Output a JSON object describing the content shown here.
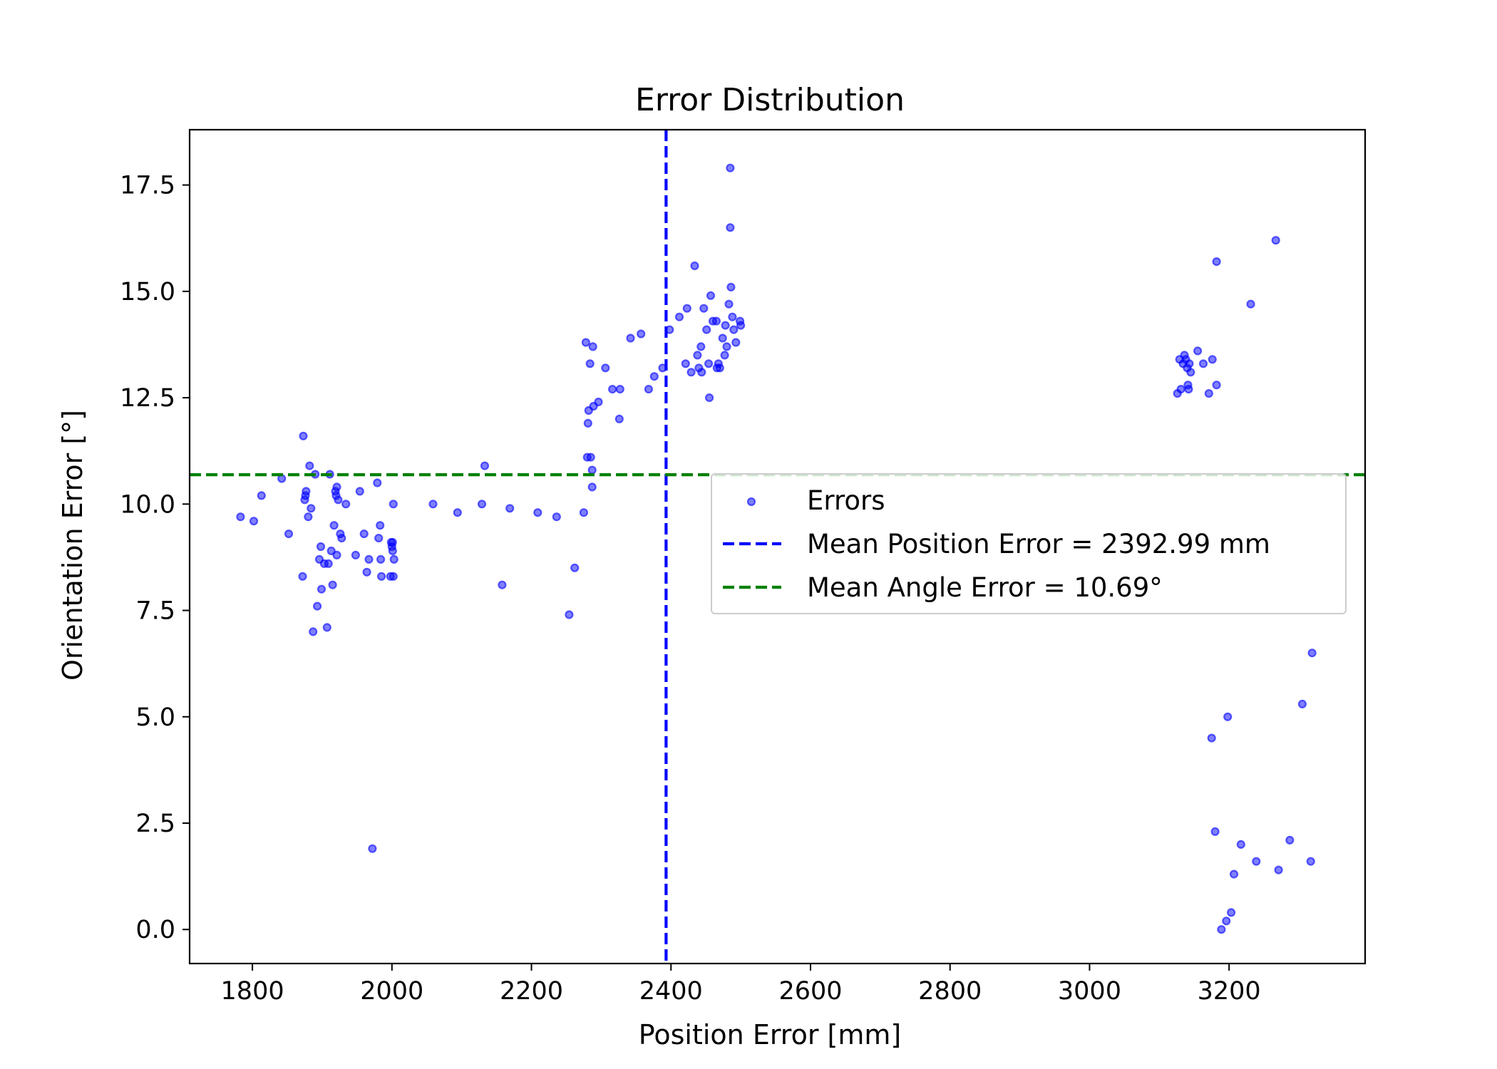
{
  "chart_data": {
    "type": "scatter",
    "title": "Error Distribution",
    "xlabel": "Position Error [mm]",
    "ylabel": "Orientation Error [°]",
    "xlim": [
      1710,
      3395
    ],
    "ylim": [
      -0.8,
      18.8
    ],
    "x_ticks": [
      1800,
      2000,
      2200,
      2400,
      2600,
      2800,
      3000,
      3200
    ],
    "y_ticks": [
      0.0,
      2.5,
      5.0,
      7.5,
      10.0,
      12.5,
      15.0,
      17.5
    ],
    "grid": false,
    "legend_position": "center-right",
    "series": [
      {
        "name": "Errors",
        "kind": "scatter",
        "color": "#0000ff",
        "points": [
          [
            1783,
            9.7
          ],
          [
            1802,
            9.6
          ],
          [
            1813,
            10.2
          ],
          [
            1842,
            10.6
          ],
          [
            1852,
            9.3
          ],
          [
            1873,
            11.6
          ],
          [
            1872,
            8.3
          ],
          [
            1875,
            10.1
          ],
          [
            1876,
            10.2
          ],
          [
            1877,
            10.3
          ],
          [
            1880,
            9.7
          ],
          [
            1882,
            10.9
          ],
          [
            1884,
            9.9
          ],
          [
            1887,
            7.0
          ],
          [
            1890,
            10.7
          ],
          [
            1893,
            7.6
          ],
          [
            1896,
            8.7
          ],
          [
            1898,
            9.0
          ],
          [
            1899,
            8.0
          ],
          [
            1903,
            8.6
          ],
          [
            1907,
            7.1
          ],
          [
            1909,
            8.6
          ],
          [
            1911,
            10.7
          ],
          [
            1913,
            8.9
          ],
          [
            1915,
            8.1
          ],
          [
            1917,
            9.5
          ],
          [
            1919,
            10.3
          ],
          [
            1920,
            10.2
          ],
          [
            1921,
            10.4
          ],
          [
            1921,
            8.8
          ],
          [
            1923,
            10.1
          ],
          [
            1926,
            9.3
          ],
          [
            1928,
            9.2
          ],
          [
            1934,
            10.0
          ],
          [
            1948,
            8.8
          ],
          [
            1954,
            10.3
          ],
          [
            1960,
            9.3
          ],
          [
            1964,
            8.4
          ],
          [
            1967,
            8.7
          ],
          [
            1972,
            1.9
          ],
          [
            1979,
            10.5
          ],
          [
            1981,
            9.2
          ],
          [
            1983,
            9.5
          ],
          [
            1984,
            8.7
          ],
          [
            1985,
            8.3
          ],
          [
            1998,
            8.3
          ],
          [
            1999,
            9.1
          ],
          [
            2000,
            9.0
          ],
          [
            2001,
            8.9
          ],
          [
            2001,
            9.1
          ],
          [
            2002,
            8.3
          ],
          [
            2002,
            10.0
          ],
          [
            2003,
            8.7
          ],
          [
            2059,
            10.0
          ],
          [
            2094,
            9.8
          ],
          [
            2129,
            10.0
          ],
          [
            2133,
            10.9
          ],
          [
            2158,
            8.1
          ],
          [
            2169,
            9.9
          ],
          [
            2209,
            9.8
          ],
          [
            2236,
            9.7
          ],
          [
            2254,
            7.4
          ],
          [
            2262,
            8.5
          ],
          [
            2275,
            9.8
          ],
          [
            2278,
            13.8
          ],
          [
            2280,
            11.1
          ],
          [
            2281,
            11.9
          ],
          [
            2282,
            12.2
          ],
          [
            2284,
            13.3
          ],
          [
            2285,
            11.1
          ],
          [
            2287,
            10.8
          ],
          [
            2287,
            10.4
          ],
          [
            2288,
            13.7
          ],
          [
            2289,
            12.3
          ],
          [
            2296,
            12.4
          ],
          [
            2306,
            13.2
          ],
          [
            2316,
            12.7
          ],
          [
            2326,
            12.0
          ],
          [
            2327,
            12.7
          ],
          [
            2342,
            13.9
          ],
          [
            2357,
            14.0
          ],
          [
            2368,
            12.7
          ],
          [
            2376,
            13.0
          ],
          [
            2388,
            13.2
          ],
          [
            2398,
            14.1
          ],
          [
            2412,
            14.4
          ],
          [
            2421,
            13.3
          ],
          [
            2423,
            14.6
          ],
          [
            2429,
            13.1
          ],
          [
            2434,
            15.6
          ],
          [
            2438,
            13.5
          ],
          [
            2440,
            13.2
          ],
          [
            2443,
            13.7
          ],
          [
            2444,
            13.1
          ],
          [
            2447,
            14.6
          ],
          [
            2451,
            14.1
          ],
          [
            2454,
            13.3
          ],
          [
            2455,
            12.5
          ],
          [
            2457,
            14.9
          ],
          [
            2460,
            14.3
          ],
          [
            2465,
            14.3
          ],
          [
            2466,
            13.2
          ],
          [
            2468,
            13.3
          ],
          [
            2470,
            13.2
          ],
          [
            2474,
            13.9
          ],
          [
            2477,
            13.5
          ],
          [
            2478,
            14.2
          ],
          [
            2480,
            13.7
          ],
          [
            2483,
            14.7
          ],
          [
            2485,
            17.9
          ],
          [
            2485,
            16.5
          ],
          [
            2486,
            15.1
          ],
          [
            2488,
            14.4
          ],
          [
            2490,
            14.1
          ],
          [
            2493,
            13.8
          ],
          [
            2499,
            14.3
          ],
          [
            2500,
            14.2
          ],
          [
            3126,
            12.6
          ],
          [
            3129,
            13.4
          ],
          [
            3131,
            12.7
          ],
          [
            3134,
            13.3
          ],
          [
            3136,
            13.5
          ],
          [
            3138,
            13.4
          ],
          [
            3140,
            13.2
          ],
          [
            3141,
            12.8
          ],
          [
            3142,
            12.7
          ],
          [
            3143,
            13.3
          ],
          [
            3145,
            13.1
          ],
          [
            3155,
            13.6
          ],
          [
            3163,
            13.3
          ],
          [
            3171,
            12.6
          ],
          [
            3175,
            4.5
          ],
          [
            3176,
            13.4
          ],
          [
            3180,
            2.3
          ],
          [
            3182,
            12.8
          ],
          [
            3182,
            15.7
          ],
          [
            3189,
            0.0
          ],
          [
            3196,
            0.2
          ],
          [
            3198,
            5.0
          ],
          [
            3203,
            0.4
          ],
          [
            3207,
            1.3
          ],
          [
            3217,
            2.0
          ],
          [
            3231,
            14.7
          ],
          [
            3239,
            1.6
          ],
          [
            3267,
            16.2
          ],
          [
            3271,
            1.4
          ],
          [
            3287,
            2.1
          ],
          [
            3305,
            5.3
          ],
          [
            3317,
            1.6
          ],
          [
            3319,
            6.5
          ]
        ]
      },
      {
        "name": "Mean Position Error = 2392.99 mm",
        "kind": "vline",
        "x": 2392.99,
        "color": "#0000ff"
      },
      {
        "name": "Mean Angle Error = 10.69°",
        "kind": "hline",
        "y": 10.69,
        "color": "#008000"
      }
    ]
  }
}
